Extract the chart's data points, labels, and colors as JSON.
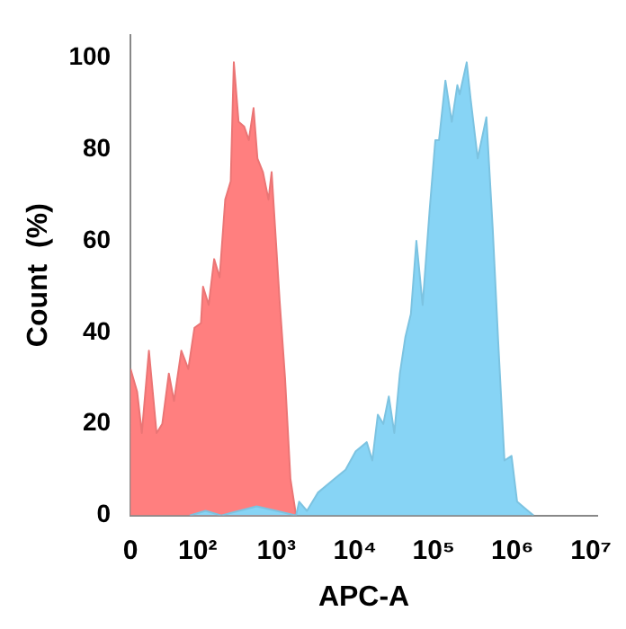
{
  "chart_data": {
    "type": "area",
    "xlabel": "APC-A",
    "ylabel": "Count  (%)",
    "log": "x",
    "xlim": [
      0,
      12000000
    ],
    "ylim": [
      0,
      105
    ],
    "xticks": [
      0,
      {
        "value": 100,
        "label": "10²"
      },
      {
        "value": 1000,
        "label": "10³"
      },
      {
        "value": 10000,
        "label": "10⁴"
      },
      {
        "value": 100000,
        "label": "10⁵"
      },
      {
        "value": 1000000,
        "label": "10⁶"
      },
      {
        "value": 10000000,
        "label": "10⁷"
      }
    ],
    "yticks": [
      0,
      20,
      40,
      60,
      80,
      100
    ],
    "grid": false,
    "legend": false,
    "series": [
      {
        "color": "#ff7f7f",
        "x": [
          14,
          17,
          19.5,
          24,
          30,
          35.5,
          43,
          50,
          62,
          76,
          91,
          110,
          117,
          138,
          162,
          190,
          224,
          263,
          288,
          331,
          389,
          447,
          513,
          575,
          676,
          794,
          871,
          1100,
          1290,
          1510,
          1780
        ],
        "values": [
          32,
          27,
          18,
          36,
          18,
          20,
          31,
          25,
          36,
          32,
          41,
          42,
          50,
          46,
          56,
          52,
          69,
          73,
          99,
          86,
          85,
          82,
          89,
          78,
          75,
          69,
          75,
          47,
          30,
          8,
          0
        ]
      },
      {
        "color": "#87d4f5",
        "x": [
          79,
          126,
          200,
          562,
          1000,
          1780,
          1950,
          2450,
          3390,
          5500,
          7590,
          10200,
          14100,
          16600,
          19500,
          22900,
          26900,
          31600,
          37200,
          43700,
          51300,
          60300,
          72400,
          89100,
          105000,
          117000,
          141000,
          170000,
          200000,
          214000,
          263000,
          295000,
          363000,
          468000,
          562000,
          661000,
          794000,
          977000,
          1150000,
          1580000,
          1860000
        ],
        "values": [
          0,
          1,
          0,
          2,
          1,
          0,
          3,
          1,
          5,
          8,
          10,
          14,
          16,
          12,
          22,
          20,
          26,
          18,
          31,
          39,
          44,
          60,
          46,
          67,
          82,
          82,
          95,
          86,
          94,
          92,
          99,
          91,
          78,
          87,
          63,
          38,
          12,
          13,
          3,
          1,
          0
        ]
      }
    ]
  }
}
